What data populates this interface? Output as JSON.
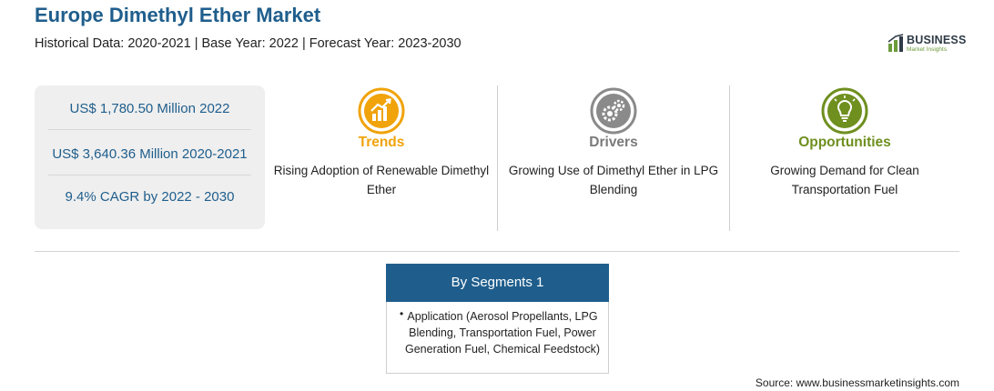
{
  "header": {
    "title": "Europe Dimethyl Ether Market",
    "subtitle": "Historical Data: 2020-2021 | Base Year: 2022 | Forecast Year: 2023-2030"
  },
  "logo": {
    "word": "BUSINESS",
    "sub": "Market Insights"
  },
  "stats": [
    "US$ 1,780.50 Million 2022",
    "US$ 3,640.36 Million 2020-2021",
    "9.4% CAGR by 2022 - 2030"
  ],
  "pillars": [
    {
      "heading": "Trends",
      "desc": "Rising Adoption of Renewable Dimethyl Ether",
      "color": "#f0a30a",
      "icon": "chart-growth-icon"
    },
    {
      "heading": "Drivers",
      "desc": "Growing Use of Dimethyl Ether in LPG Blending",
      "color": "#8a8a8a",
      "icon": "gears-icon"
    },
    {
      "heading": "Opportunities",
      "desc": "Growing Demand for Clean Transportation Fuel",
      "color": "#6f8f1f",
      "icon": "lightbulb-icon"
    }
  ],
  "segments": {
    "heading": "By Segments 1",
    "items": [
      "Application (Aerosol Propellants, LPG Blending, Transportation Fuel, Power Generation Fuel, Chemical Feedstock)"
    ]
  },
  "source": "Source: www.businessmarketinsights.com"
}
